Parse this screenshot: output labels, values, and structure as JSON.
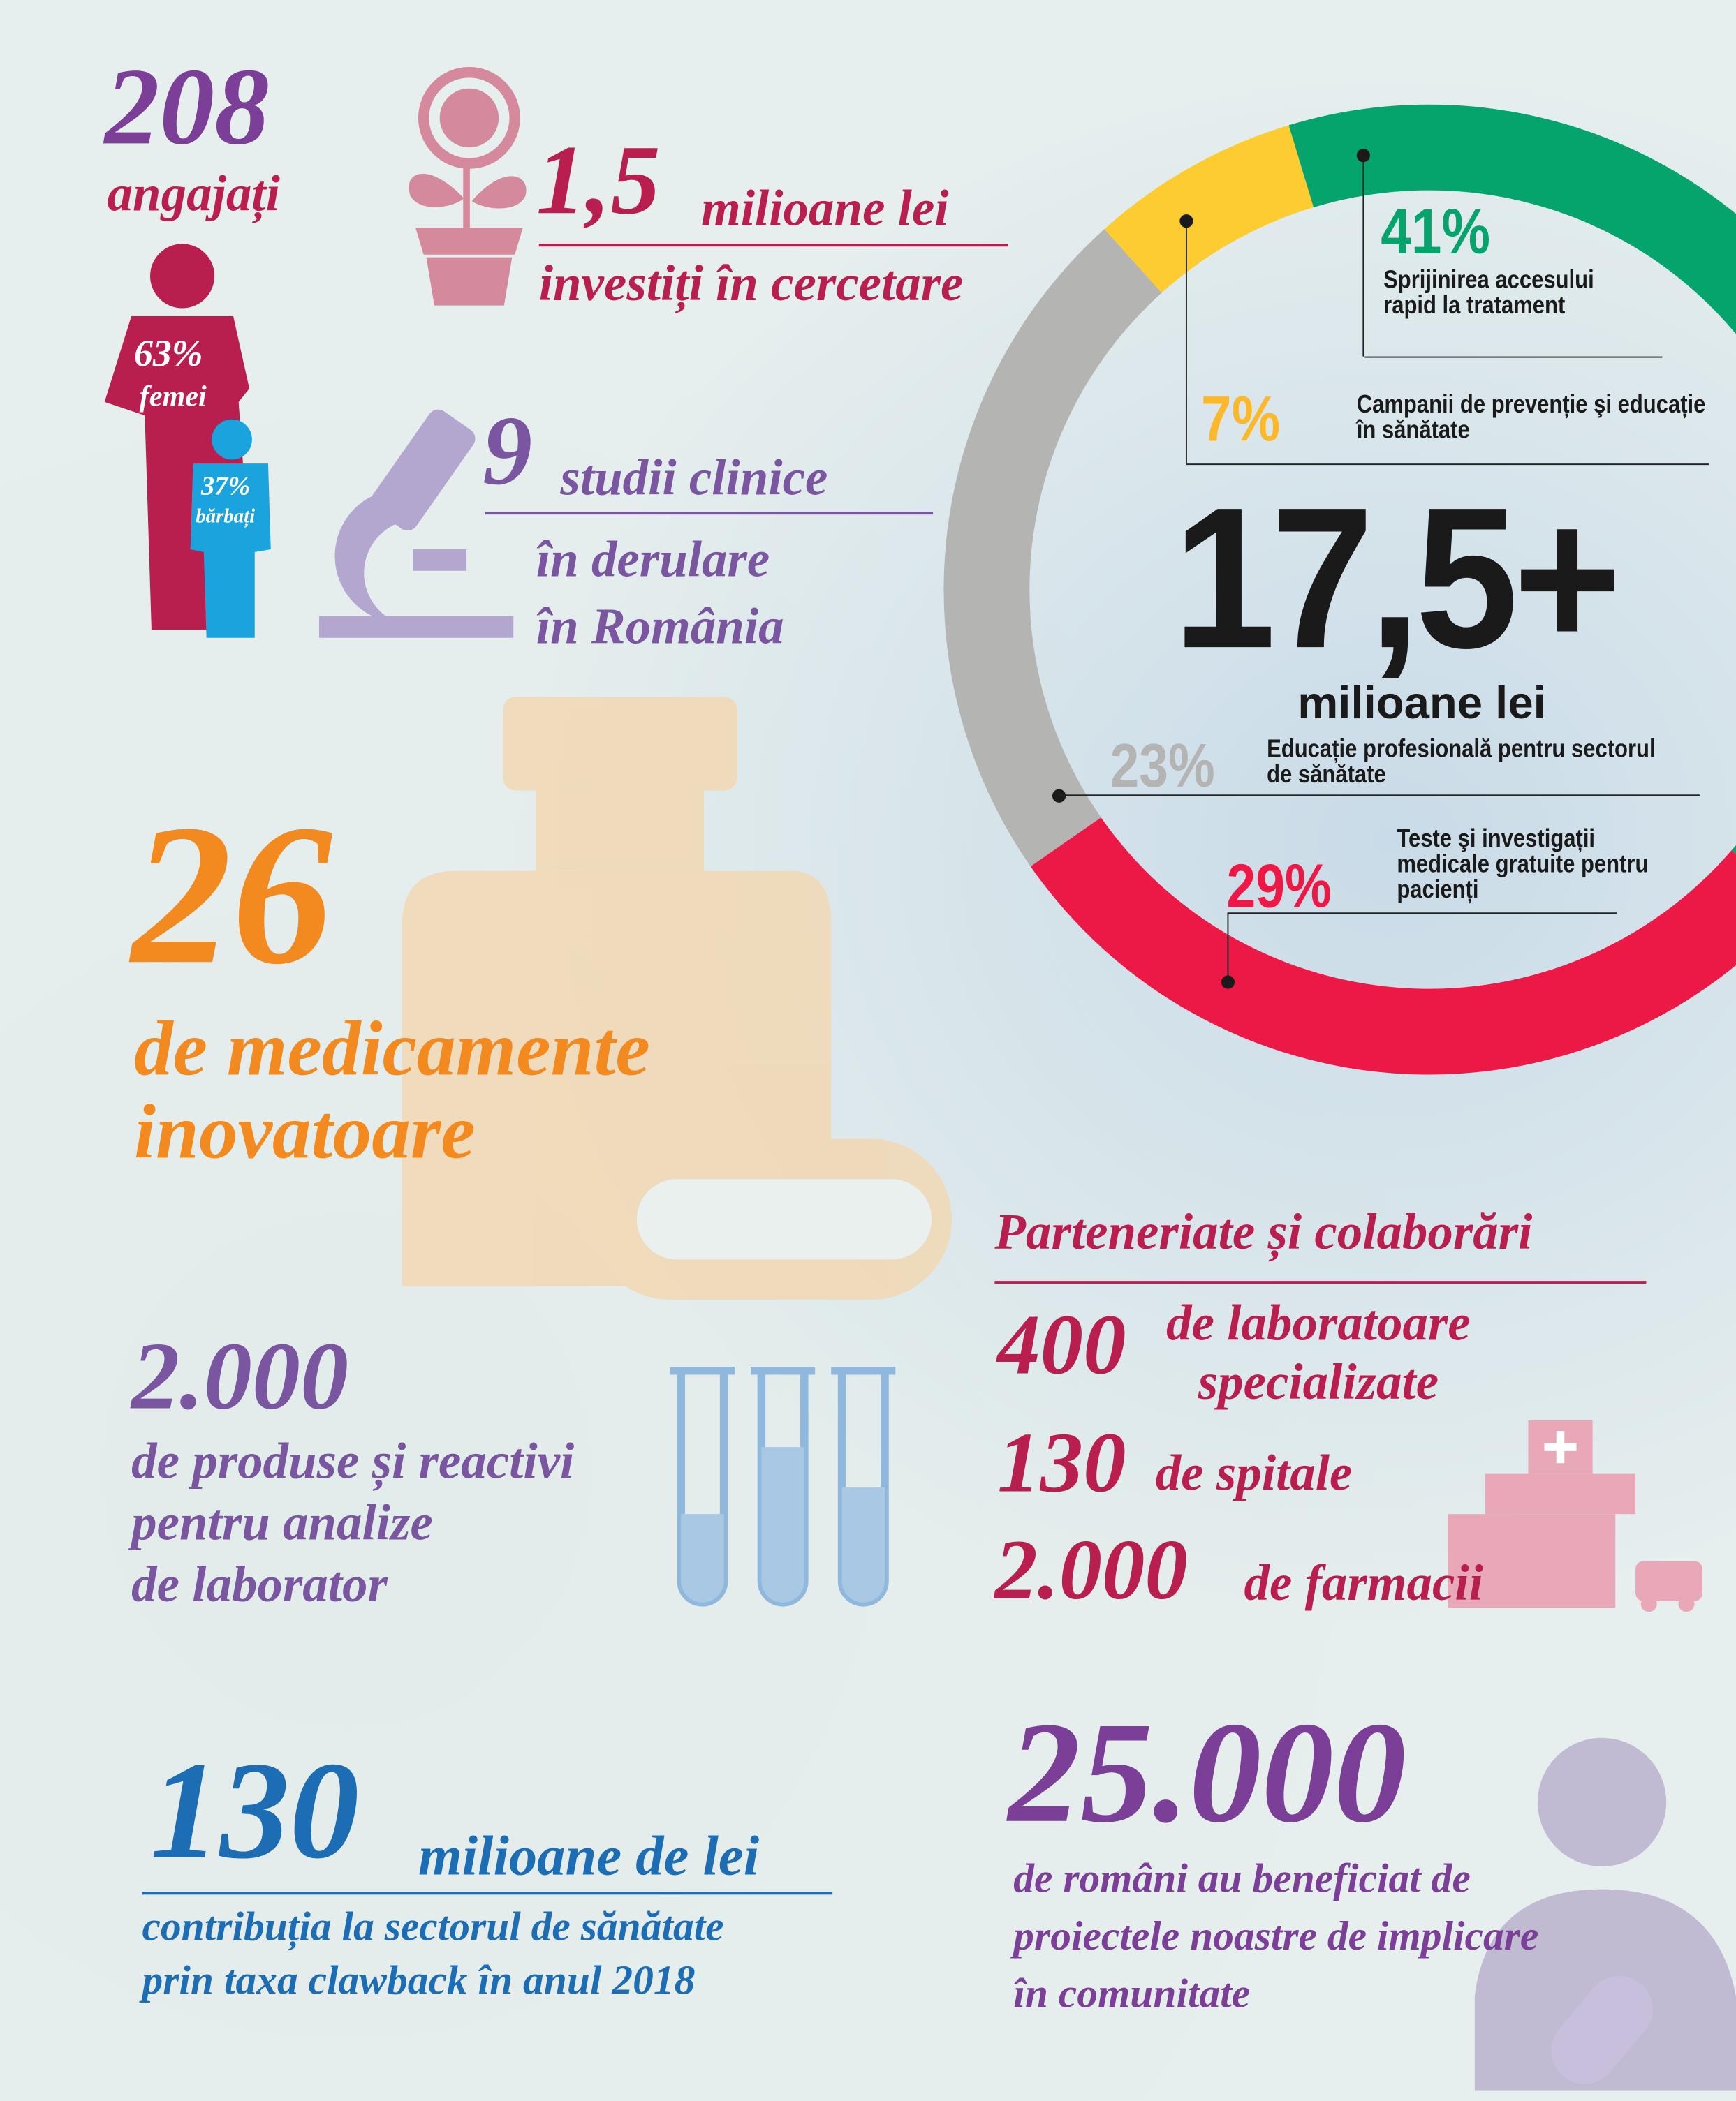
{
  "employees": {
    "count": "208",
    "label": "angajați",
    "women_pct": "63%",
    "women_label": "femei",
    "men_pct": "37%",
    "men_label": "bărbați"
  },
  "research": {
    "value": "1,5",
    "unit": "milioane lei",
    "label": "investiți în cercetare"
  },
  "trials": {
    "value": "9",
    "unit": "studii clinice",
    "line1": "în derulare",
    "line2": "în România"
  },
  "medicines": {
    "value": "26",
    "line1": "de medicamente",
    "line2": "inovatoare"
  },
  "products": {
    "value": "2.000",
    "line1": "de produse și reactivi",
    "line2": "pentru analize",
    "line3": "de laborator"
  },
  "clawback": {
    "value": "130",
    "unit": "milioane de lei",
    "line1": "contribuția la sectorul de sănătate",
    "line2": "prin taxa clawback în anul 2018"
  },
  "partnerships": {
    "title": "Parteneriate și colaborări",
    "items": [
      {
        "value": "400",
        "label1": "de laboratoare",
        "label2": "specializate"
      },
      {
        "value": "130",
        "label1": "de spitale"
      },
      {
        "value": "2.000",
        "label1": "de farmacii"
      }
    ]
  },
  "community": {
    "value": "25.000",
    "line1": "de români au beneficiat de",
    "line2": "proiectele noastre de implicare",
    "line3": "în comunitate"
  },
  "chart_data": {
    "type": "pie",
    "donut": true,
    "total": "17,5+",
    "total_unit": "milioane lei",
    "categories": [
      "Campanii de prevenție şi educație în sănătate",
      "Sprijinirea accesului rapid la tratament",
      "Teste şi investigații medicale gratuite pentru pacienți",
      "Educație profesională pentru sectorul de sănătate"
    ],
    "values": [
      7,
      41,
      29,
      23
    ],
    "labels": [
      "7%",
      "41%",
      "29%",
      "23%"
    ],
    "colors": [
      "#fccc30",
      "#04a46c",
      "#ec1846",
      "#b4b4b2"
    ]
  },
  "colors": {
    "purple": "#7b3f98",
    "crimson": "#b81f4f",
    "orange": "#f28a20",
    "blue": "#1d6db5"
  }
}
